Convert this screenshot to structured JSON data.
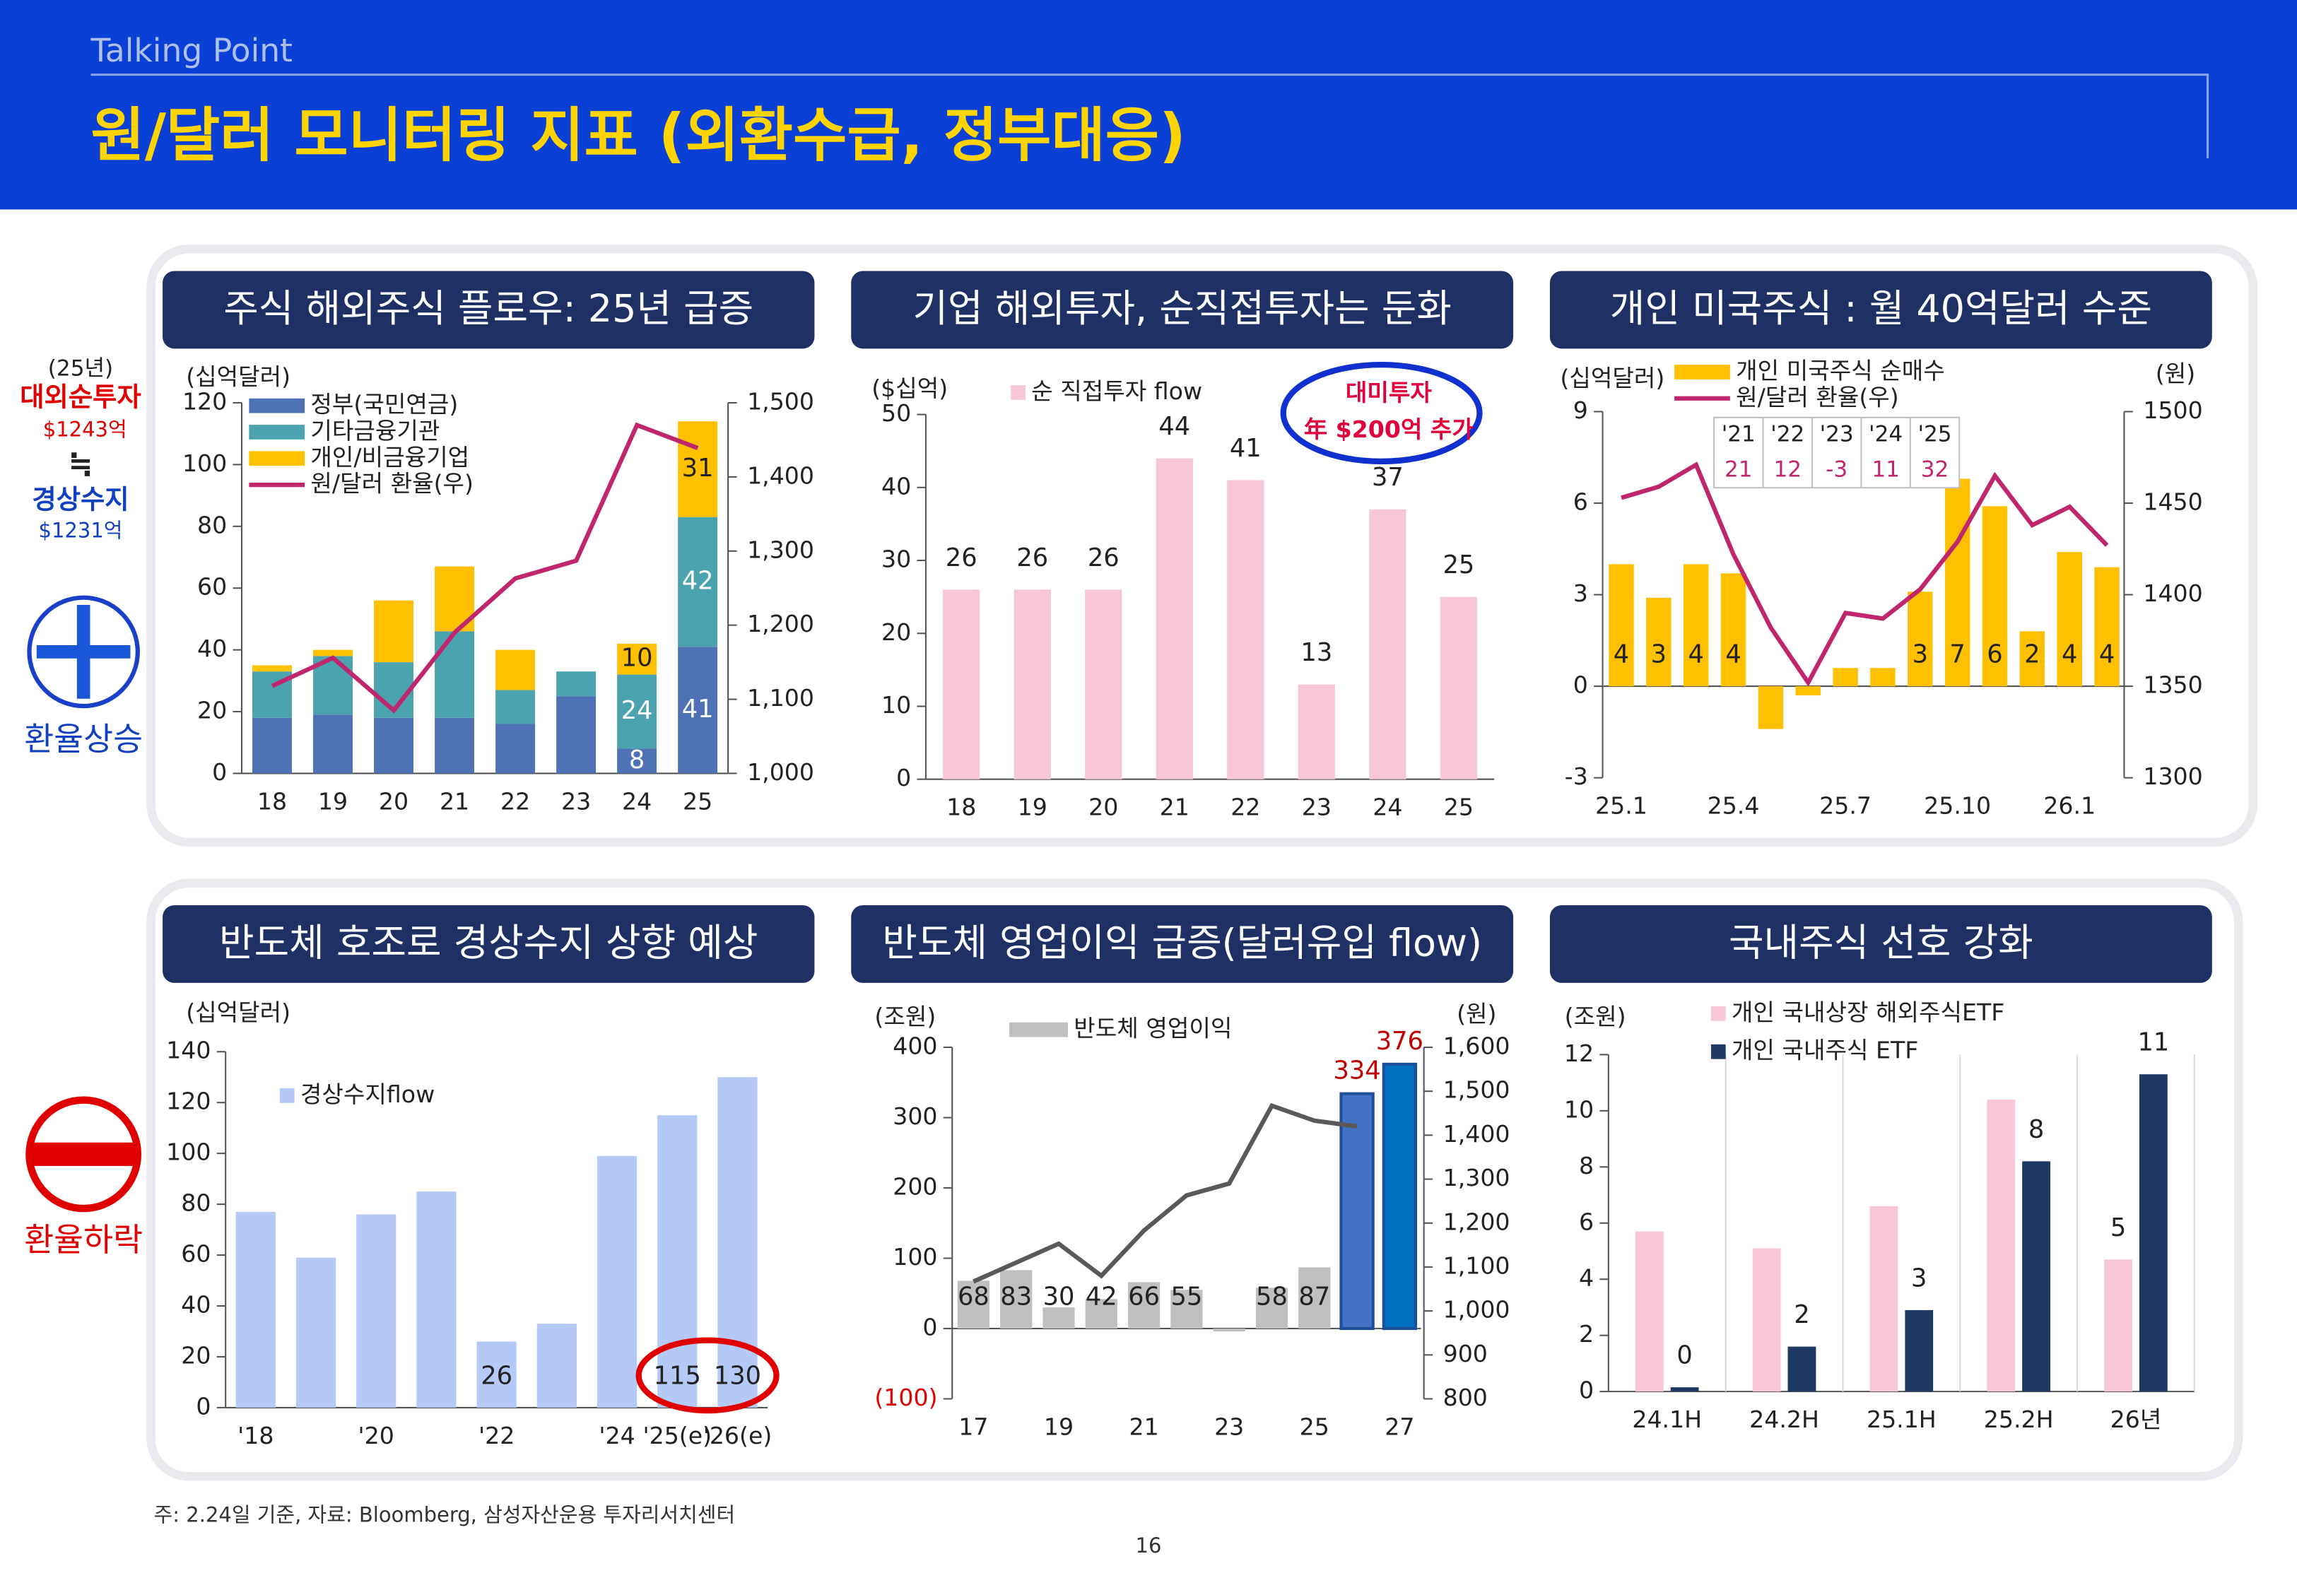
{
  "header": {
    "tag": "Talking Point",
    "title": "원/달러 모니터링 지표 (외환수급, 정부대응)"
  },
  "side": {
    "year": "(25년)",
    "net_investment": "대외순투자",
    "net_investment_value": "$1243억",
    "approx": "≒",
    "current_account": "경상수지",
    "current_account_value": "$1231억",
    "up": "환율상승",
    "down": "환율하락"
  },
  "chart_data": [
    {
      "type": "bar",
      "stacked": true,
      "title": "주식 해외주식 플로우: 25년 급증",
      "y_label": "(십억달러)",
      "categories": [
        "18",
        "19",
        "20",
        "21",
        "22",
        "23",
        "24",
        "25"
      ],
      "ylim": [
        0,
        120
      ],
      "yticks": [
        0,
        20,
        40,
        60,
        80,
        100,
        120
      ],
      "y2lim": [
        1000,
        1500
      ],
      "y2ticks": [
        {
          "value": 1000,
          "label": "1,000"
        },
        {
          "value": 1100,
          "label": "1,100"
        },
        {
          "value": 1200,
          "label": "1,200"
        },
        {
          "value": 1300,
          "label": "1,300"
        },
        {
          "value": 1400,
          "label": "1,400"
        },
        {
          "value": 1500,
          "label": "1,500"
        }
      ],
      "series": [
        {
          "name": "정부(국민연금)",
          "color": "#4f71b6",
          "label_color": "#ffffff",
          "values": [
            18,
            19,
            18,
            18,
            16,
            25,
            8,
            41
          ],
          "value_labels": [
            null,
            null,
            null,
            null,
            null,
            null,
            "8",
            "41"
          ]
        },
        {
          "name": "기타금융기관",
          "color": "#4ba3b0",
          "label_color": "#ffffff",
          "values": [
            15,
            19,
            18,
            28,
            11,
            8,
            24,
            42
          ],
          "value_labels": [
            null,
            null,
            null,
            null,
            null,
            null,
            "24",
            "42"
          ]
        },
        {
          "name": "개인/비금융기업",
          "color": "#ffc000",
          "label_color": "#222222",
          "values": [
            2,
            2,
            20,
            21,
            13,
            0,
            10,
            31
          ],
          "value_labels": [
            null,
            null,
            null,
            null,
            null,
            null,
            "10",
            "31"
          ]
        },
        {
          "name": "원/달러 환율(우)",
          "type": "line",
          "axis": "y2",
          "color": "#c0266e",
          "values": [
            1118,
            1156,
            1085,
            1190,
            1263,
            1287,
            1470,
            1439
          ]
        }
      ]
    },
    {
      "type": "bar",
      "title": "기업 해외투자, 순직접투자는 둔화",
      "y_label": "($십억)",
      "categories": [
        "18",
        "19",
        "20",
        "21",
        "22",
        "23",
        "24",
        "25"
      ],
      "ylim": [
        0,
        50
      ],
      "yticks": [
        0,
        10,
        20,
        30,
        40,
        50
      ],
      "data_labels": true,
      "annotations": [
        "대미투자",
        "年 $200억 추가"
      ],
      "series": [
        {
          "name": "순 직접투자 flow",
          "color": "#f7c6d9",
          "values": [
            26,
            26,
            26,
            44,
            41,
            13,
            37,
            25
          ]
        }
      ]
    },
    {
      "type": "bar",
      "title": "개인 미국주식 : 월 40억달러 수준",
      "y_label": "(십억달러)",
      "y2_label": "(원)",
      "categories": [
        "25.1",
        null,
        null,
        "25.4",
        null,
        null,
        "25.7",
        null,
        null,
        "25.10",
        null,
        null,
        "26.1",
        null
      ],
      "ylim": [
        -3,
        9
      ],
      "yticks": [
        -3,
        0,
        3,
        6,
        9
      ],
      "y2lim": [
        1300,
        1500
      ],
      "y2ticks": [
        1300,
        1350,
        1400,
        1450,
        1500
      ],
      "inset_table": {
        "columns": [
          "'21",
          "'22",
          "'23",
          "'24",
          "'25"
        ],
        "values": [
          21,
          12,
          -3,
          11,
          32
        ]
      },
      "series": [
        {
          "name": "개인 미국주식 순매수",
          "color": "#ffc000",
          "values": [
            4.0,
            2.9,
            4.0,
            3.7,
            -1.4,
            -0.3,
            0.6,
            0.6,
            3.1,
            6.8,
            5.9,
            1.8,
            4.4,
            3.9
          ],
          "value_labels": [
            "4",
            "3",
            "4",
            "4",
            null,
            null,
            null,
            null,
            "3",
            "7",
            "6",
            "2",
            "4",
            "4"
          ]
        },
        {
          "name": "원/달러 환율(우)",
          "type": "line",
          "axis": "y2",
          "color": "#c0266e",
          "values": [
            1453,
            1459,
            1471,
            1422,
            1382,
            1352,
            1390,
            1387,
            1403,
            1429,
            1465,
            1438,
            1448,
            1427
          ]
        }
      ]
    },
    {
      "type": "bar",
      "title": "반도체 호조로 경상수지 상향 예상",
      "y_label": "(십억달러)",
      "categories": [
        "'18",
        null,
        "'20",
        null,
        "'22",
        null,
        "'24",
        "'25(e)",
        "'26(e)"
      ],
      "ylim": [
        0,
        140
      ],
      "yticks": [
        0,
        20,
        40,
        60,
        80,
        100,
        120,
        140
      ],
      "series": [
        {
          "name": "경상수지flow",
          "color": "#b4c9f5",
          "values": [
            77,
            59,
            76,
            85,
            26,
            33,
            99,
            115,
            130
          ],
          "value_labels": [
            null,
            null,
            null,
            null,
            "26",
            null,
            null,
            "115",
            "130"
          ]
        }
      ]
    },
    {
      "type": "bar",
      "title": "반도체 영업이익 급증(달러유입 flow)",
      "y_label": "(조원)",
      "y2_label": "(원)",
      "categories": [
        "17",
        null,
        "19",
        null,
        "21",
        null,
        "23",
        null,
        "25",
        null,
        "27"
      ],
      "ylim": [
        -100,
        400
      ],
      "yticks": [
        {
          "value": -100,
          "label": "(100)"
        },
        0,
        100,
        200,
        300,
        400
      ],
      "y2lim": [
        800,
        1600
      ],
      "y2ticks": [
        800,
        900,
        {
          "value": 1000,
          "label": "1,000"
        },
        {
          "value": 1100,
          "label": "1,100"
        },
        {
          "value": 1200,
          "label": "1,200"
        },
        {
          "value": 1300,
          "label": "1,300"
        },
        {
          "value": 1400,
          "label": "1,400"
        },
        {
          "value": 1500,
          "label": "1,500"
        },
        {
          "value": 1600,
          "label": "1,600"
        }
      ],
      "series": [
        {
          "name": "반도체 영업이익",
          "color": "#bfbfbf",
          "colors": [
            "#bfbfbf",
            "#bfbfbf",
            "#bfbfbf",
            "#bfbfbf",
            "#bfbfbf",
            "#bfbfbf",
            "#bfbfbf",
            "#bfbfbf",
            "#bfbfbf",
            "#4472c4",
            "#0070c0"
          ],
          "values": [
            68,
            83,
            30,
            42,
            66,
            55,
            -4,
            58,
            87,
            334,
            376
          ],
          "value_labels": [
            "68",
            "83",
            "30",
            "42",
            "66",
            "55",
            null,
            "58",
            "87",
            "334",
            "376"
          ]
        },
        {
          "type": "line",
          "axis": "y2",
          "color": "#595959",
          "values": [
            1067,
            1110,
            1153,
            1080,
            1183,
            1263,
            1290,
            1467,
            1433,
            1420,
            null
          ]
        }
      ]
    },
    {
      "type": "bar",
      "title": "국내주식 선호 강화",
      "y_label": "(조원)",
      "categories": [
        "24.1H",
        "24.2H",
        "25.1H",
        "25.2H",
        "26년"
      ],
      "ylim": [
        0,
        12
      ],
      "yticks": [
        0,
        2,
        4,
        6,
        8,
        10,
        12
      ],
      "series": [
        {
          "name": "개인 국내상장 해외주식ETF",
          "color": "#f7c6d9",
          "values": [
            5.7,
            5.1,
            6.6,
            10.4,
            4.7
          ],
          "value_labels": [
            null,
            null,
            null,
            null,
            "5"
          ]
        },
        {
          "name": "개인 국내주식 ETF",
          "color": "#1f3864",
          "values": [
            0.15,
            1.6,
            2.9,
            8.2,
            11.3
          ],
          "value_labels": [
            "0",
            "2",
            "3",
            "8",
            "11"
          ]
        }
      ]
    }
  ],
  "footer": {
    "note": "주: 2.24일 기준, 자료: Bloomberg, 삼성자산운용 투자리서치센터",
    "page": "16"
  }
}
